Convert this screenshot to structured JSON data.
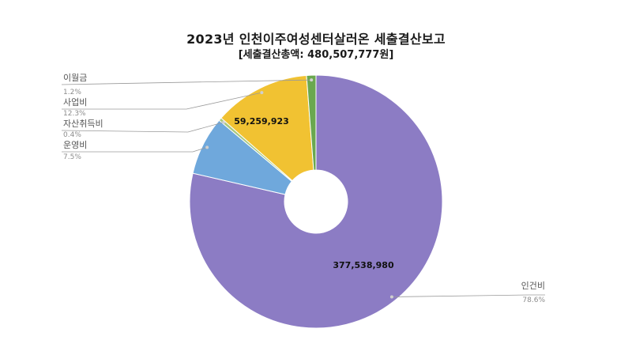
{
  "chart_data": {
    "type": "pie",
    "title": "2023년 인천이주여성센터살러온 세출결산보고",
    "subtitle": "[세출결산총액: 480,507,777원]",
    "slices": [
      {
        "label": "인건비",
        "percent": "78.6%",
        "share": 78.6,
        "value_label": "377,538,980",
        "color": "#8c7cc4"
      },
      {
        "label": "운영비",
        "percent": "7.5%",
        "share": 7.5,
        "value_label": "",
        "color": "#6fa8dc"
      },
      {
        "label": "자산취득비",
        "percent": "0.4%",
        "share": 0.4,
        "value_label": "",
        "color": "#a9c97f"
      },
      {
        "label": "사업비",
        "percent": "12.3%",
        "share": 12.3,
        "value_label": "59,259,923",
        "color": "#f1c232"
      },
      {
        "label": "이월금",
        "percent": "1.2%",
        "share": 1.2,
        "value_label": "",
        "color": "#6aa84f"
      }
    ],
    "legend": "none",
    "style": "donut"
  }
}
